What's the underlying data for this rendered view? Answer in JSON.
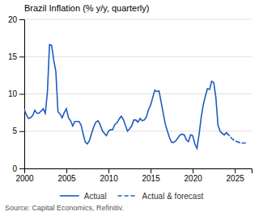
{
  "chart_data": {
    "type": "line",
    "title": "Brazil Inflation (% y/y, quarterly)",
    "annotations": [
      "Source: Capital Economics, Refinitiv."
    ],
    "xlim": [
      2000,
      2027
    ],
    "ylim": [
      0,
      20
    ],
    "xticks": [
      2000,
      2005,
      2010,
      2015,
      2020,
      2025
    ],
    "yticks": [
      0,
      5,
      10,
      15,
      20
    ],
    "grid": "y",
    "legend": "bottom",
    "series": [
      {
        "name": "Actual",
        "color": "#1f5bbf",
        "line_style": "solid",
        "x": [
          2000.0,
          2000.25,
          2000.5,
          2000.75,
          2001.0,
          2001.25,
          2001.5,
          2001.75,
          2002.0,
          2002.25,
          2002.5,
          2002.75,
          2003.0,
          2003.25,
          2003.5,
          2003.75,
          2004.0,
          2004.25,
          2004.5,
          2004.75,
          2005.0,
          2005.25,
          2005.5,
          2005.75,
          2006.0,
          2006.25,
          2006.5,
          2006.75,
          2007.0,
          2007.25,
          2007.5,
          2007.75,
          2008.0,
          2008.25,
          2008.5,
          2008.75,
          2009.0,
          2009.25,
          2009.5,
          2009.75,
          2010.0,
          2010.25,
          2010.5,
          2010.75,
          2011.0,
          2011.25,
          2011.5,
          2011.75,
          2012.0,
          2012.25,
          2012.5,
          2012.75,
          2013.0,
          2013.25,
          2013.5,
          2013.75,
          2014.0,
          2014.25,
          2014.5,
          2014.75,
          2015.0,
          2015.25,
          2015.5,
          2015.75,
          2016.0,
          2016.25,
          2016.5,
          2016.75,
          2017.0,
          2017.25,
          2017.5,
          2017.75,
          2018.0,
          2018.25,
          2018.5,
          2018.75,
          2019.0,
          2019.25,
          2019.5,
          2019.75,
          2020.0,
          2020.25,
          2020.5,
          2020.75,
          2021.0,
          2021.25,
          2021.5,
          2021.75,
          2022.0,
          2022.25,
          2022.5,
          2022.75,
          2023.0,
          2023.25,
          2023.5,
          2023.75,
          2024.0
        ],
        "values": [
          7.9,
          7.2,
          6.7,
          6.8,
          7.1,
          7.8,
          7.4,
          7.4,
          7.7,
          8.0,
          7.4,
          10.3,
          16.6,
          16.5,
          14.5,
          13.0,
          7.6,
          7.3,
          6.8,
          7.5,
          8.0,
          6.8,
          6.4,
          5.7,
          6.3,
          6.3,
          6.3,
          5.8,
          4.6,
          3.5,
          3.3,
          3.8,
          4.7,
          5.6,
          6.2,
          6.4,
          5.9,
          5.1,
          4.7,
          4.4,
          5.0,
          5.2,
          5.2,
          5.9,
          6.1,
          6.6,
          7.0,
          6.6,
          5.8,
          5.0,
          5.3,
          5.7,
          6.5,
          6.5,
          6.2,
          6.7,
          6.4,
          6.5,
          6.9,
          7.9,
          8.5,
          9.5,
          10.5,
          10.3,
          10.4,
          8.9,
          7.4,
          5.9,
          5.0,
          4.1,
          3.5,
          3.5,
          3.7,
          4.1,
          4.5,
          4.6,
          4.5,
          3.8,
          3.6,
          4.5,
          4.4,
          3.3,
          2.7,
          4.5,
          6.8,
          8.5,
          9.7,
          10.7,
          10.6,
          11.7,
          11.5,
          9.5,
          5.8,
          5.0,
          4.7,
          4.5,
          4.8
        ]
      },
      {
        "name": "Actual & forecast",
        "color": "#1f5bbf",
        "line_style": "dashed",
        "x": [
          2024.0,
          2024.25,
          2024.5,
          2024.75,
          2025.0,
          2025.25,
          2025.5,
          2025.75,
          2026.0,
          2026.25
        ],
        "values": [
          4.8,
          4.5,
          4.2,
          3.9,
          3.7,
          3.6,
          3.5,
          3.4,
          3.4,
          3.4
        ]
      }
    ]
  }
}
